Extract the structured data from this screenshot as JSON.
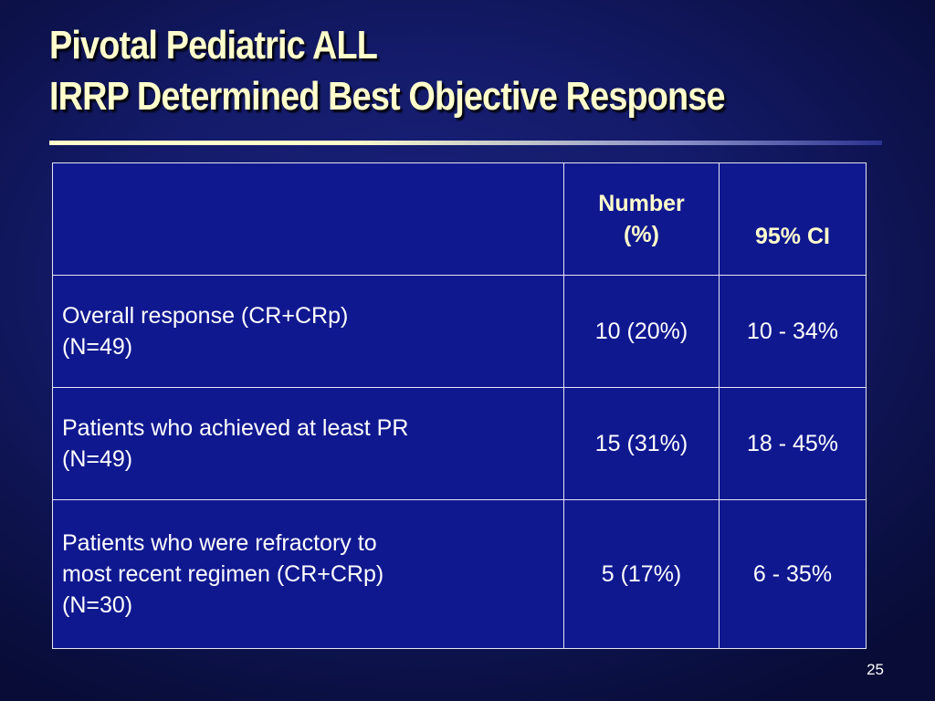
{
  "slide": {
    "title_lines": [
      "Pivotal Pediatric ALL",
      "IRRP Determined Best Objective Response"
    ],
    "page_number": "25"
  },
  "table": {
    "headers": {
      "blank": "",
      "number_lines": [
        "Number",
        "(%)"
      ],
      "ci": "95% CI"
    },
    "rows": [
      {
        "label_lines": [
          "Overall response (CR+CRp)",
          "(N=49)"
        ],
        "number": "10 (20%)",
        "ci": "10 - 34%"
      },
      {
        "label_lines": [
          "Patients who achieved at least PR",
          "(N=49)"
        ],
        "number": "15 (31%)",
        "ci": "18 - 45%"
      },
      {
        "label_lines": [
          "Patients who were refractory to",
          "most recent regimen (CR+CRp)",
          "(N=30)"
        ],
        "number": "5 (17%)",
        "ci": "6 - 35%"
      }
    ]
  }
}
